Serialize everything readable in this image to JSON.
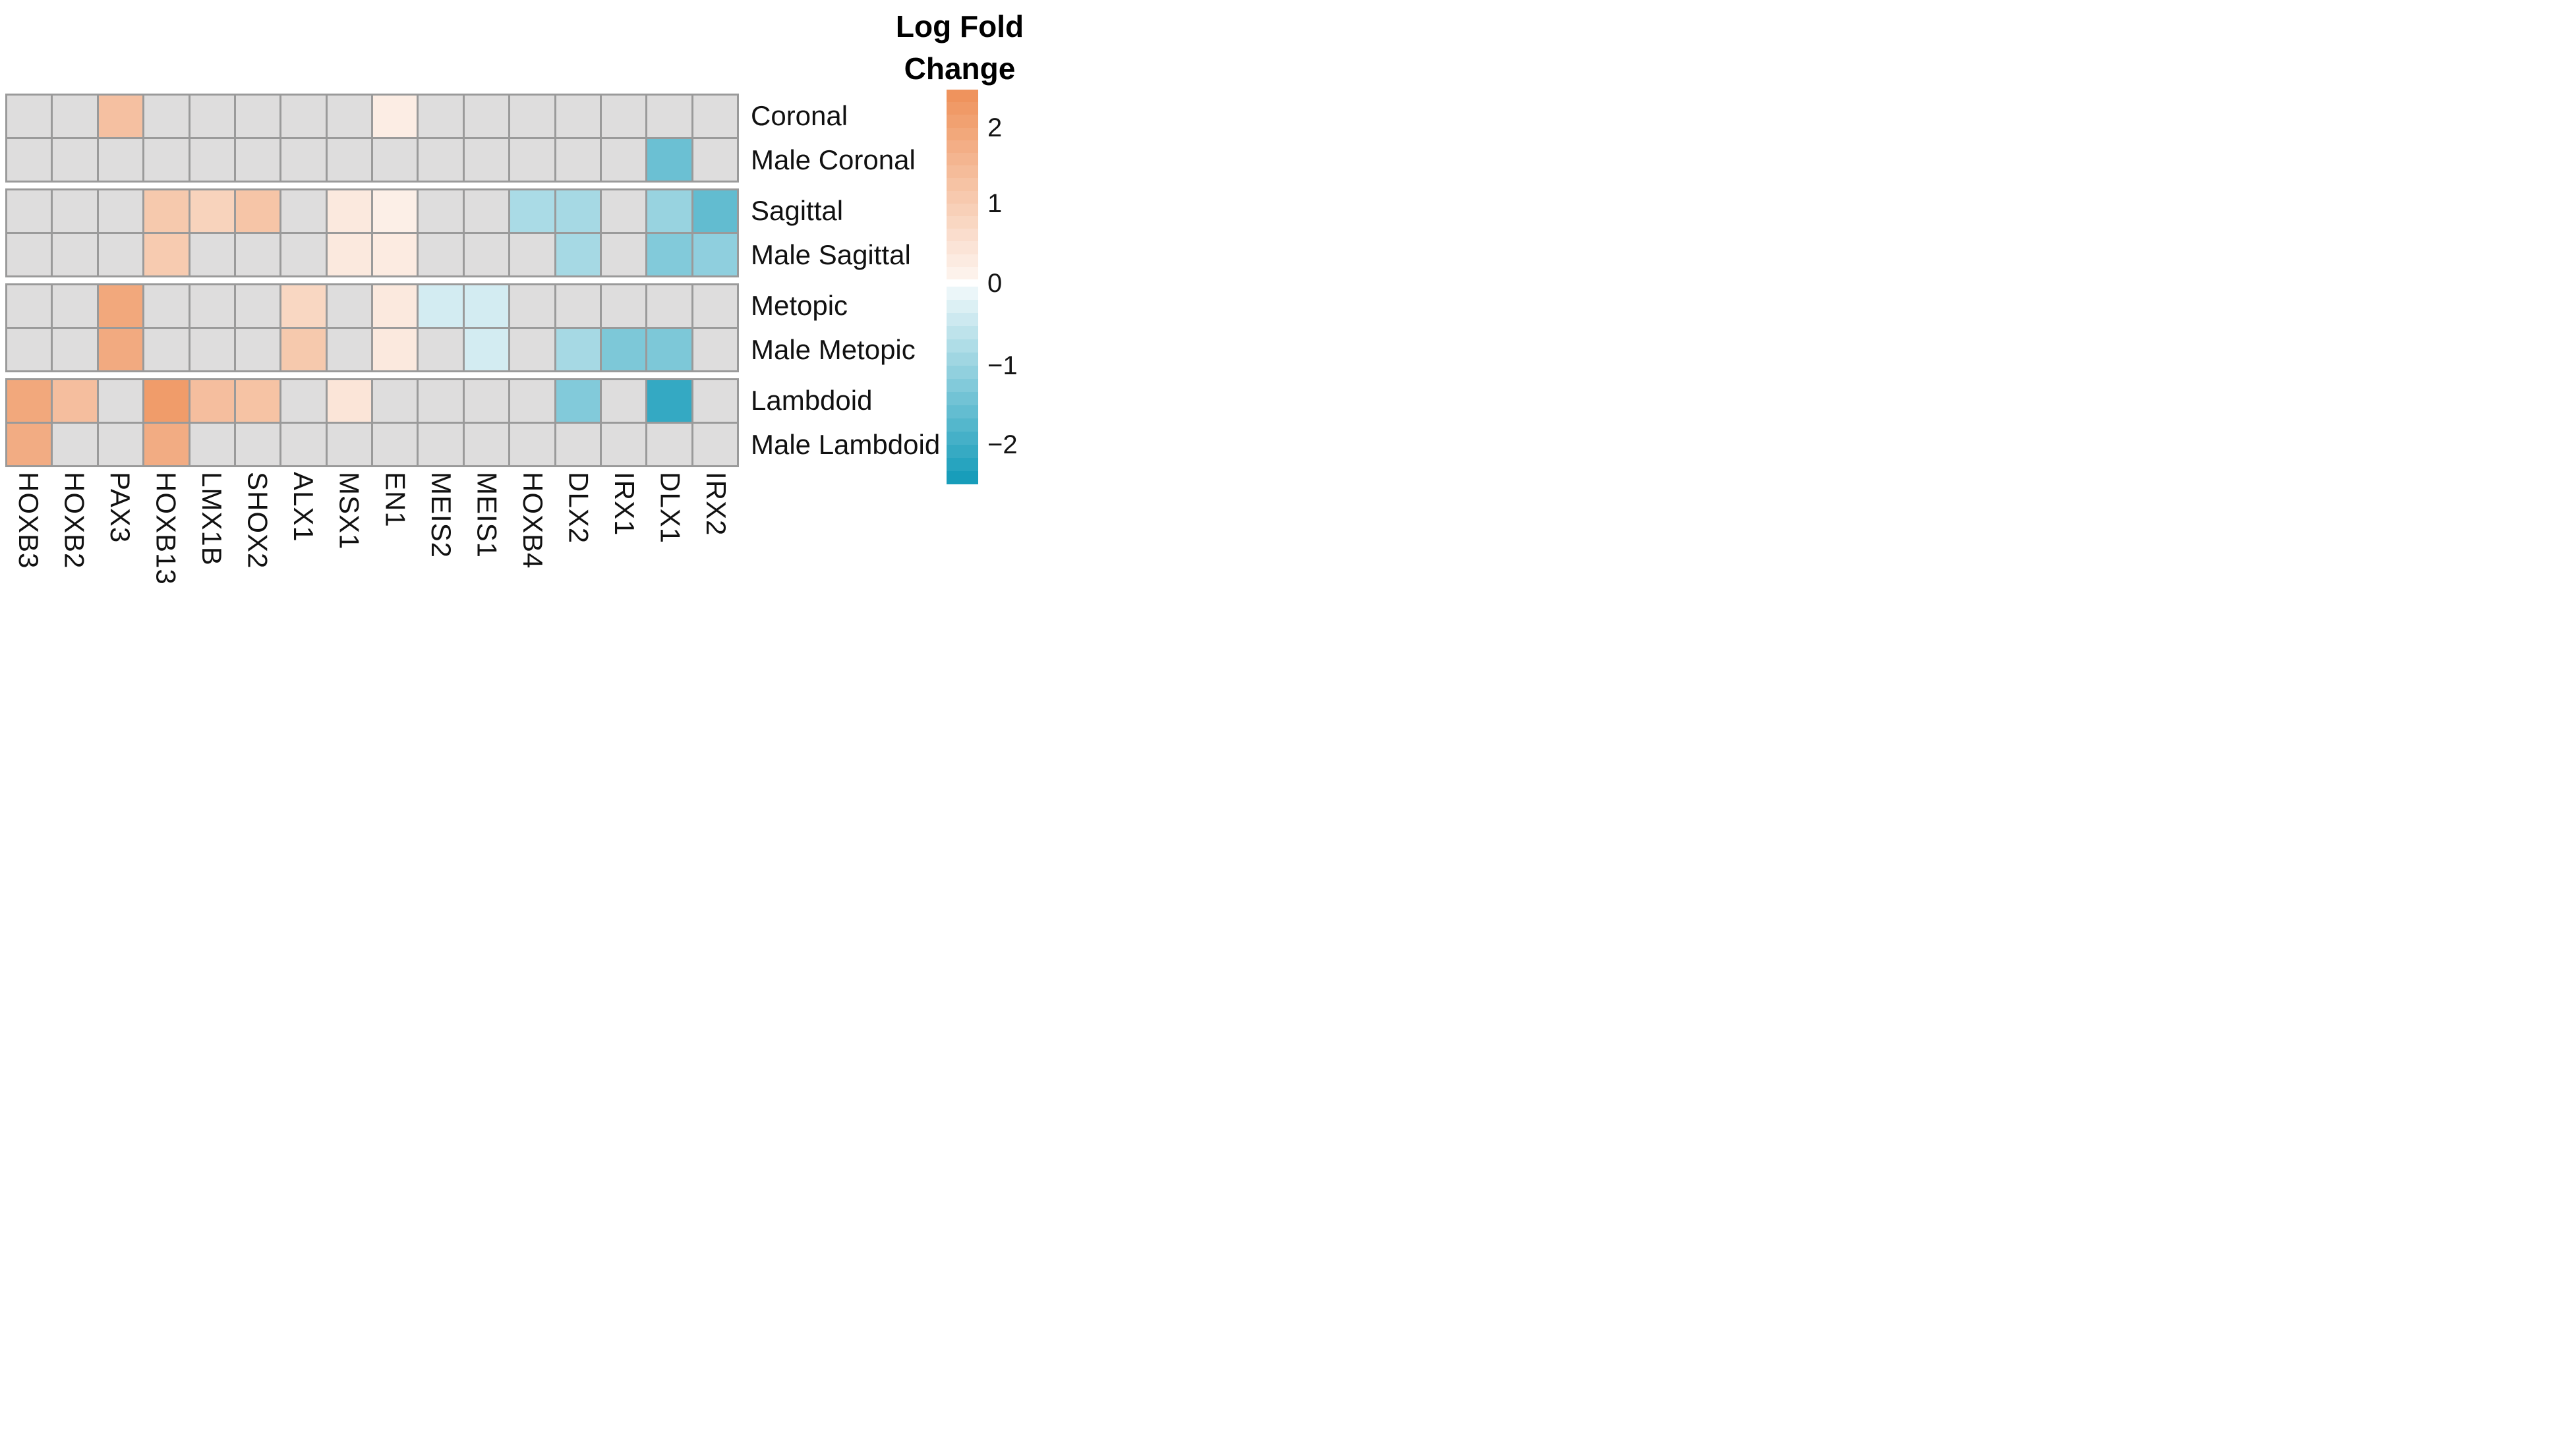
{
  "legend": {
    "title_line1": "Log Fold",
    "title_line2": "Change",
    "positive_ticks": [
      {
        "label": "2",
        "value": 2
      },
      {
        "label": "1",
        "value": 1
      }
    ],
    "zero_tick": {
      "label": "0",
      "value": 0
    },
    "negative_ticks": [
      {
        "label": "−1",
        "value": -1
      },
      {
        "label": "−2",
        "value": -2
      }
    ],
    "positive_range": [
      0,
      2.5
    ],
    "negative_range": [
      0,
      -2.5
    ],
    "steps_per_bar": 15,
    "colors": {
      "positive_max": "#ee9058",
      "positive_min": "#fdf5f0",
      "negative_min": "#f3f9fb",
      "negative_max": "#109ab8",
      "not_significant": "#dedddd",
      "grid_line": "#9a9a9a"
    }
  },
  "chart_data": {
    "type": "heatmap",
    "title": "",
    "colorscale_title": "Log Fold Change",
    "x_categories": [
      "HOXB3",
      "HOXB2",
      "PAX3",
      "HOXB13",
      "LMX1B",
      "SHOX2",
      "ALX1",
      "MSX1",
      "EN1",
      "MEIS2",
      "MEIS1",
      "HOXB4",
      "DLX2",
      "IRX1",
      "DLX1",
      "IRX2"
    ],
    "y_categories": [
      "Coronal",
      "Male Coronal",
      "Sagittal",
      "Male Sagittal",
      "Metopic",
      "Male Metopic",
      "Lambdoid",
      "Male Lambdoid"
    ],
    "row_groups": [
      [
        0,
        1
      ],
      [
        2,
        3
      ],
      [
        4,
        5
      ],
      [
        6,
        7
      ]
    ],
    "value_range": [
      -2.5,
      2.5
    ],
    "values": [
      [
        null,
        null,
        1.3,
        null,
        null,
        null,
        null,
        null,
        0.2,
        null,
        null,
        null,
        null,
        null,
        null,
        null
      ],
      [
        null,
        null,
        null,
        null,
        null,
        null,
        null,
        null,
        null,
        null,
        null,
        null,
        null,
        null,
        -1.5,
        null
      ],
      [
        null,
        null,
        null,
        1.1,
        0.85,
        1.2,
        null,
        0.3,
        0.15,
        null,
        null,
        -0.8,
        -0.85,
        null,
        -1.0,
        -1.6
      ],
      [
        null,
        null,
        null,
        1.05,
        null,
        null,
        null,
        0.3,
        0.25,
        null,
        null,
        null,
        -0.85,
        null,
        -1.25,
        -1.1
      ],
      [
        null,
        null,
        1.9,
        null,
        null,
        null,
        0.75,
        null,
        0.3,
        -0.35,
        -0.35,
        null,
        null,
        null,
        null,
        null
      ],
      [
        null,
        null,
        1.85,
        null,
        null,
        null,
        1.1,
        null,
        0.3,
        null,
        -0.35,
        null,
        -0.85,
        -1.3,
        -1.3,
        null
      ],
      [
        1.9,
        1.35,
        null,
        2.2,
        1.35,
        1.25,
        null,
        0.4,
        null,
        null,
        null,
        null,
        -1.25,
        null,
        -2.1,
        null
      ],
      [
        1.8,
        null,
        null,
        1.8,
        null,
        null,
        null,
        null,
        null,
        null,
        null,
        null,
        null,
        null,
        null,
        null
      ]
    ]
  }
}
